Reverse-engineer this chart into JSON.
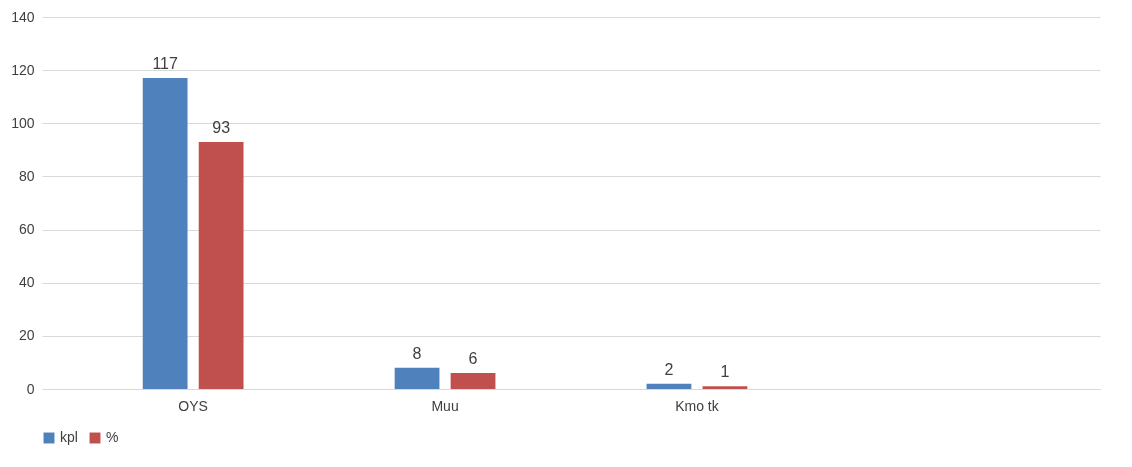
{
  "chart_data": {
    "type": "bar",
    "categories": [
      "OYS",
      "Muu",
      "Kmo tk",
      null
    ],
    "series": [
      {
        "name": "kpl",
        "color": "#4f81bd",
        "values": [
          117,
          8,
          2,
          null
        ]
      },
      {
        "name": "%",
        "color": "#c0504d",
        "values": [
          93,
          6,
          1,
          null
        ]
      }
    ],
    "ylim": [
      0,
      140
    ],
    "yticks": [
      0,
      20,
      40,
      60,
      80,
      100,
      120,
      140
    ],
    "grid": "y",
    "legend": "bottom",
    "data_labels": true
  }
}
